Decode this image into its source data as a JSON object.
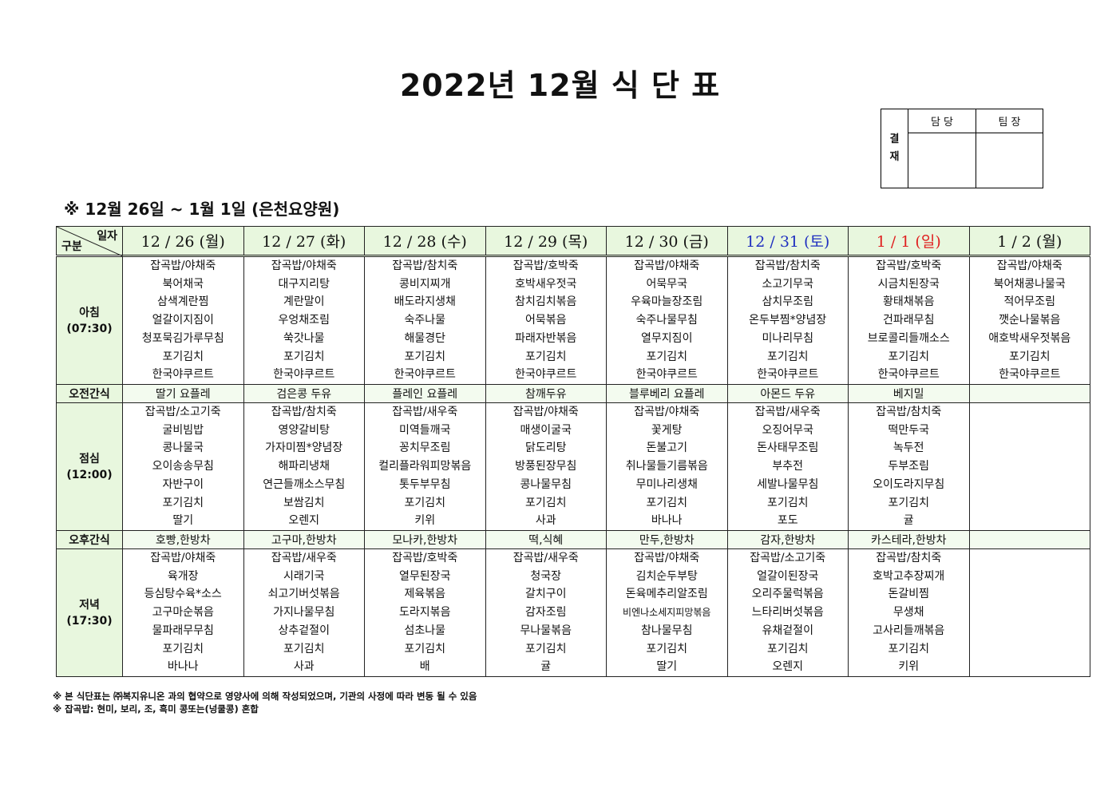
{
  "title": "2022년 12월 식 단 표",
  "approval": {
    "side_1": "결",
    "side_2": "재",
    "col1": "담 당",
    "col2": "팀 장"
  },
  "subtitle": "※ 12월 26일 ~ 1월 1일 (은천요양원)",
  "corner": {
    "top": "일자",
    "bottom": "구분"
  },
  "colors": {
    "header_bg": "#e8f7de",
    "saturday": "#1f2fc0",
    "sunday": "#e02020"
  },
  "days": [
    {
      "label": "12 / 26 (월)",
      "color": "#111111"
    },
    {
      "label": "12 / 27 (화)",
      "color": "#111111"
    },
    {
      "label": "12 / 28 (수)",
      "color": "#111111"
    },
    {
      "label": "12 / 29 (목)",
      "color": "#111111"
    },
    {
      "label": "12 / 30 (금)",
      "color": "#111111"
    },
    {
      "label": "12 / 31 (토)",
      "color": "#1f2fc0"
    },
    {
      "label": "1 / 1 (일)",
      "color": "#e02020"
    },
    {
      "label": "1 / 2 (월)",
      "color": "#111111"
    }
  ],
  "rows": [
    {
      "type": "meal",
      "label": "아침",
      "time": "(07:30)",
      "cells": [
        [
          "잡곡밥/야채죽",
          "북어채국",
          "삼색계란찜",
          "얼갈이지짐이",
          "청포묵김가루무침",
          "포기김치",
          "한국야쿠르트"
        ],
        [
          "잡곡밥/야채죽",
          "대구지리탕",
          "계란말이",
          "우엉채조림",
          "쑥갓나물",
          "포기김치",
          "한국야쿠르트"
        ],
        [
          "잡곡밥/참치죽",
          "콩비지찌개",
          "배도라지생채",
          "숙주나물",
          "해물경단",
          "포기김치",
          "한국야쿠르트"
        ],
        [
          "잡곡밥/호박죽",
          "호박새우젓국",
          "참치김치볶음",
          "어묵볶음",
          "파래자반볶음",
          "포기김치",
          "한국야쿠르트"
        ],
        [
          "잡곡밥/야채죽",
          "어묵무국",
          "우육마늘장조림",
          "숙주나물무침",
          "열무지짐이",
          "포기김치",
          "한국야쿠르트"
        ],
        [
          "잡곡밥/참치죽",
          "소고기무국",
          "삼치무조림",
          "온두부찜*양념장",
          "미나리무침",
          "포기김치",
          "한국야쿠르트"
        ],
        [
          "잡곡밥/호박죽",
          "시금치된장국",
          "황태채볶음",
          "건파래무침",
          "브로콜리들깨소스",
          "포기김치",
          "한국야쿠르트"
        ],
        [
          "잡곡밥/야채죽",
          "북어채콩나물국",
          "적어무조림",
          "깻순나물볶음",
          "애호박새우젓볶음",
          "포기김치",
          "한국야쿠르트"
        ]
      ]
    },
    {
      "type": "snack",
      "label": "오전간식",
      "cells": [
        "딸기 요플레",
        "검은콩 두유",
        "플레인 요플레",
        "참깨두유",
        "블루베리 요플레",
        "아몬드 두유",
        "베지밀",
        ""
      ]
    },
    {
      "type": "meal",
      "label": "점심",
      "time": "(12:00)",
      "cells": [
        [
          "잡곡밥/소고기죽",
          "굴비빔밥",
          "콩나물국",
          "오이송송무침",
          "자반구이",
          "포기김치",
          "딸기"
        ],
        [
          "잡곡밥/참치죽",
          "영양갈비탕",
          "가자미찜*양념장",
          "해파리냉채",
          "연근들깨소스무침",
          "보쌈김치",
          "오렌지"
        ],
        [
          "잡곡밥/새우죽",
          "미역들깨국",
          "꽁치무조림",
          "컬리플라워피망볶음",
          "톳두부무침",
          "포기김치",
          "키위"
        ],
        [
          "잡곡밥/야채죽",
          "매생이굴국",
          "닭도리탕",
          "방풍된장무침",
          "콩나물무침",
          "포기김치",
          "사과"
        ],
        [
          "잡곡밥/야채죽",
          "꽃게탕",
          "돈불고기",
          "취나물들기름볶음",
          "무미나리생채",
          "포기김치",
          "바나나"
        ],
        [
          "잡곡밥/새우죽",
          "오징어무국",
          "돈사태무조림",
          "부추전",
          "세발나물무침",
          "포기김치",
          "포도"
        ],
        [
          "잡곡밥/참치죽",
          "떡만두국",
          "녹두전",
          "두부조림",
          "오이도라지무침",
          "포기김치",
          "귤"
        ],
        []
      ]
    },
    {
      "type": "snack",
      "label": "오후간식",
      "cells": [
        "호빵,한방차",
        "고구마,한방차",
        "모나카,한방차",
        "떡,식혜",
        "만두,한방차",
        "감자,한방차",
        "카스테라,한방차",
        ""
      ]
    },
    {
      "type": "meal",
      "label": "저녁",
      "time": "(17:30)",
      "cells": [
        [
          "잡곡밥/야채죽",
          "육개장",
          "등심탕수육*소스",
          "고구마순볶음",
          "물파래무무침",
          "포기김치",
          "바나나"
        ],
        [
          "잡곡밥/새우죽",
          "시래기국",
          "쇠고기버섯볶음",
          "가지나물무침",
          "상추겉절이",
          "포기김치",
          "사과"
        ],
        [
          "잡곡밥/호박죽",
          "열무된장국",
          "제육볶음",
          "도라지볶음",
          "섬초나물",
          "포기김치",
          "배"
        ],
        [
          "잡곡밥/새우죽",
          "청국장",
          "갈치구이",
          "감자조림",
          "무나물볶음",
          "포기김치",
          "귤"
        ],
        [
          "잡곡밥/야채죽",
          "김치순두부탕",
          "돈육메추리알조림",
          "비엔나소세지피망볶음",
          "참나물무침",
          "포기김치",
          "딸기"
        ],
        [
          "잡곡밥/소고기죽",
          "얼갈이된장국",
          "오리주물럭볶음",
          "느타리버섯볶음",
          "유채겉절이",
          "포기김치",
          "오렌지"
        ],
        [
          "잡곡밥/참치죽",
          "호박고추장찌개",
          "돈갈비찜",
          "무생채",
          "고사리들깨볶음",
          "포기김치",
          "키위"
        ],
        []
      ]
    }
  ],
  "notes": [
    "※ 본 식단표는 ㈜복지유니온 과의 협약으로 영양사에 의해 작성되었으며, 기관의 사정에 따라 변동 될 수 있음",
    "※ 잡곡밥: 현미, 보리, 조, 흑미 콩또는(넝쿨콩) 혼합"
  ]
}
